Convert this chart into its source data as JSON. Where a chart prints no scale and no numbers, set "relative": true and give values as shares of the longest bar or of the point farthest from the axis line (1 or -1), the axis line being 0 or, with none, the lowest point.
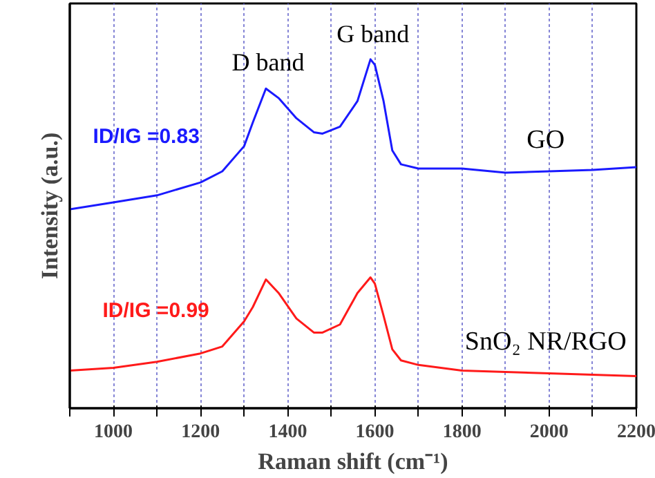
{
  "chart_data": {
    "type": "line",
    "relative": true,
    "xlabel": "Raman shift (cm⁻¹)",
    "ylabel": "Intensity (a.u.)",
    "xlim": [
      900,
      2200
    ],
    "xticks": [
      {
        "value": 900,
        "label": null
      },
      1000,
      {
        "value": 1100,
        "label": null
      },
      1200,
      {
        "value": 1300,
        "label": null
      },
      1400,
      {
        "value": 1500,
        "label": null
      },
      1600,
      {
        "value": 1700,
        "label": null
      },
      1800,
      {
        "value": 1900,
        "label": null
      },
      2000,
      {
        "value": 2100,
        "label": null
      },
      2200
    ],
    "grid": "x",
    "line_style": "solid",
    "marker": "none",
    "x": [
      900,
      1000,
      1100,
      1200,
      1250,
      1300,
      1320,
      1350,
      1380,
      1420,
      1460,
      1480,
      1520,
      1560,
      1590,
      1600,
      1620,
      1640,
      1660,
      1700,
      1800,
      1900,
      2000,
      2100,
      2200
    ],
    "series": [
      {
        "name": "GO",
        "color": "#1a1aff",
        "values": [
          0.57,
          0.59,
          0.61,
          0.647,
          0.679,
          0.751,
          0.819,
          0.916,
          0.888,
          0.831,
          0.791,
          0.787,
          0.807,
          0.88,
          1.0,
          0.984,
          0.88,
          0.739,
          0.699,
          0.687,
          0.687,
          0.675,
          0.679,
          0.683,
          0.691
        ]
      },
      {
        "name": "SnO₂ NR/RGO",
        "color": "#ff1a1a",
        "values": [
          0.108,
          0.116,
          0.133,
          0.157,
          0.177,
          0.249,
          0.29,
          0.369,
          0.329,
          0.257,
          0.217,
          0.217,
          0.24,
          0.33,
          0.375,
          0.357,
          0.265,
          0.169,
          0.137,
          0.124,
          0.108,
          0.104,
          0.1,
          0.096,
          0.092
        ]
      }
    ],
    "annotations": [
      "D band",
      "G band",
      "ID/IG =0.83",
      "ID/IG =0.99"
    ]
  }
}
